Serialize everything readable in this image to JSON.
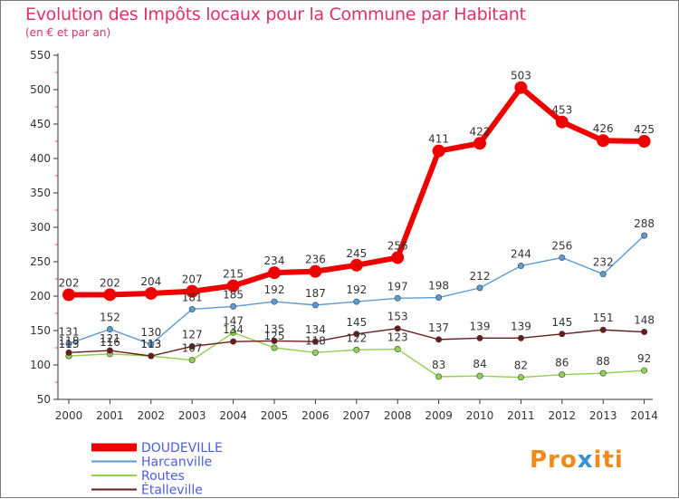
{
  "title": "Evolution des Impôts locaux pour la Commune par Habitant",
  "subtitle": "(en € et par an)",
  "logo": {
    "text_a": "Pro",
    "text_b": "x",
    "text_c": "iti"
  },
  "chart_data": {
    "type": "line",
    "x": [
      "2000",
      "2001",
      "2002",
      "2003",
      "2004",
      "2005",
      "2006",
      "2007",
      "2008",
      "2009",
      "2010",
      "2011",
      "2012",
      "2013",
      "2014"
    ],
    "ylim": [
      50,
      550
    ],
    "yticks": [
      50,
      100,
      150,
      200,
      250,
      300,
      350,
      400,
      450,
      500,
      550
    ],
    "grid": false,
    "legend_position": "bottom-left",
    "series": [
      {
        "name": "DOUDEVILLE",
        "color": "#ee0000",
        "values": [
          202,
          202,
          204,
          207,
          215,
          234,
          236,
          245,
          256,
          411,
          422,
          503,
          453,
          426,
          425
        ]
      },
      {
        "name": "Harcanville",
        "color": "#5b9bd5",
        "values": [
          131,
          152,
          130,
          181,
          185,
          192,
          187,
          192,
          197,
          198,
          212,
          244,
          256,
          232,
          288
        ]
      },
      {
        "name": "Routes",
        "color": "#92d050",
        "values": [
          113,
          116,
          113,
          107,
          147,
          125,
          118,
          122,
          123,
          83,
          84,
          82,
          86,
          88,
          92
        ]
      },
      {
        "name": "Étalleville",
        "color": "#6b1a1a",
        "values": [
          118,
          121,
          113,
          127,
          134,
          135,
          134,
          145,
          153,
          137,
          139,
          139,
          145,
          151,
          148
        ]
      }
    ]
  }
}
